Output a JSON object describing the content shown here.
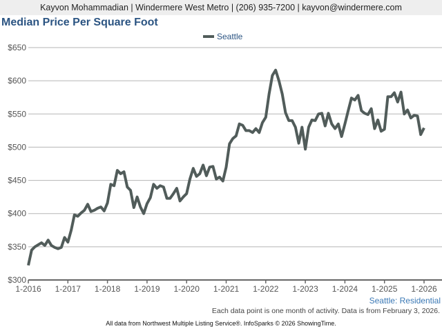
{
  "header": {
    "contact": "Kayvon Mohammadian | Windermere West Metro | (206) 935-7200 | kayvon@windermere.com"
  },
  "chart_data": {
    "type": "line",
    "title": "Median Price Per Square Foot",
    "legend": {
      "entries": [
        "Seattle"
      ],
      "placement": "top-center"
    },
    "series": [
      {
        "name": "Seattle",
        "color": "#515c5a",
        "values": [
          322,
          345,
          350,
          353,
          356,
          352,
          360,
          352,
          349,
          347,
          349,
          364,
          357,
          375,
          398,
          396,
          401,
          405,
          414,
          403,
          405,
          408,
          410,
          404,
          416,
          444,
          442,
          465,
          460,
          463,
          440,
          435,
          409,
          425,
          410,
          400,
          415,
          424,
          444,
          438,
          442,
          440,
          423,
          423,
          430,
          438,
          419,
          425,
          430,
          452,
          468,
          456,
          460,
          473,
          457,
          470,
          471,
          452,
          455,
          449,
          470,
          505,
          513,
          517,
          535,
          533,
          525,
          525,
          522,
          528,
          522,
          537,
          545,
          580,
          608,
          616,
          600,
          580,
          552,
          540,
          540,
          530,
          506,
          530,
          497,
          530,
          541,
          540,
          550,
          551,
          532,
          551,
          535,
          528,
          535,
          516,
          535,
          555,
          574,
          571,
          578,
          555,
          551,
          549,
          558,
          528,
          541,
          524,
          527,
          576,
          576,
          582,
          568,
          583,
          550,
          556,
          544,
          548,
          547,
          519,
          529
        ]
      }
    ],
    "x_start": "1-2016",
    "x_interval": "month",
    "x_ticks": [
      "1-2016",
      "1-2017",
      "1-2018",
      "1-2019",
      "1-2020",
      "1-2021",
      "1-2022",
      "1-2023",
      "1-2024",
      "1-2025",
      "1-2026"
    ],
    "y_ticks": [
      "$300",
      "$350",
      "$400",
      "$450",
      "$500",
      "$550",
      "$600",
      "$650"
    ],
    "ylim": [
      300,
      650
    ],
    "grid": true,
    "corner_label": "Seattle: Residential"
  },
  "footer": {
    "note": "Each data point is one month of activity. Data is from February 3, 2026.",
    "source": "All data from Northwest Multiple Listing Service®. InfoSparks © 2026 ShowingTime."
  }
}
